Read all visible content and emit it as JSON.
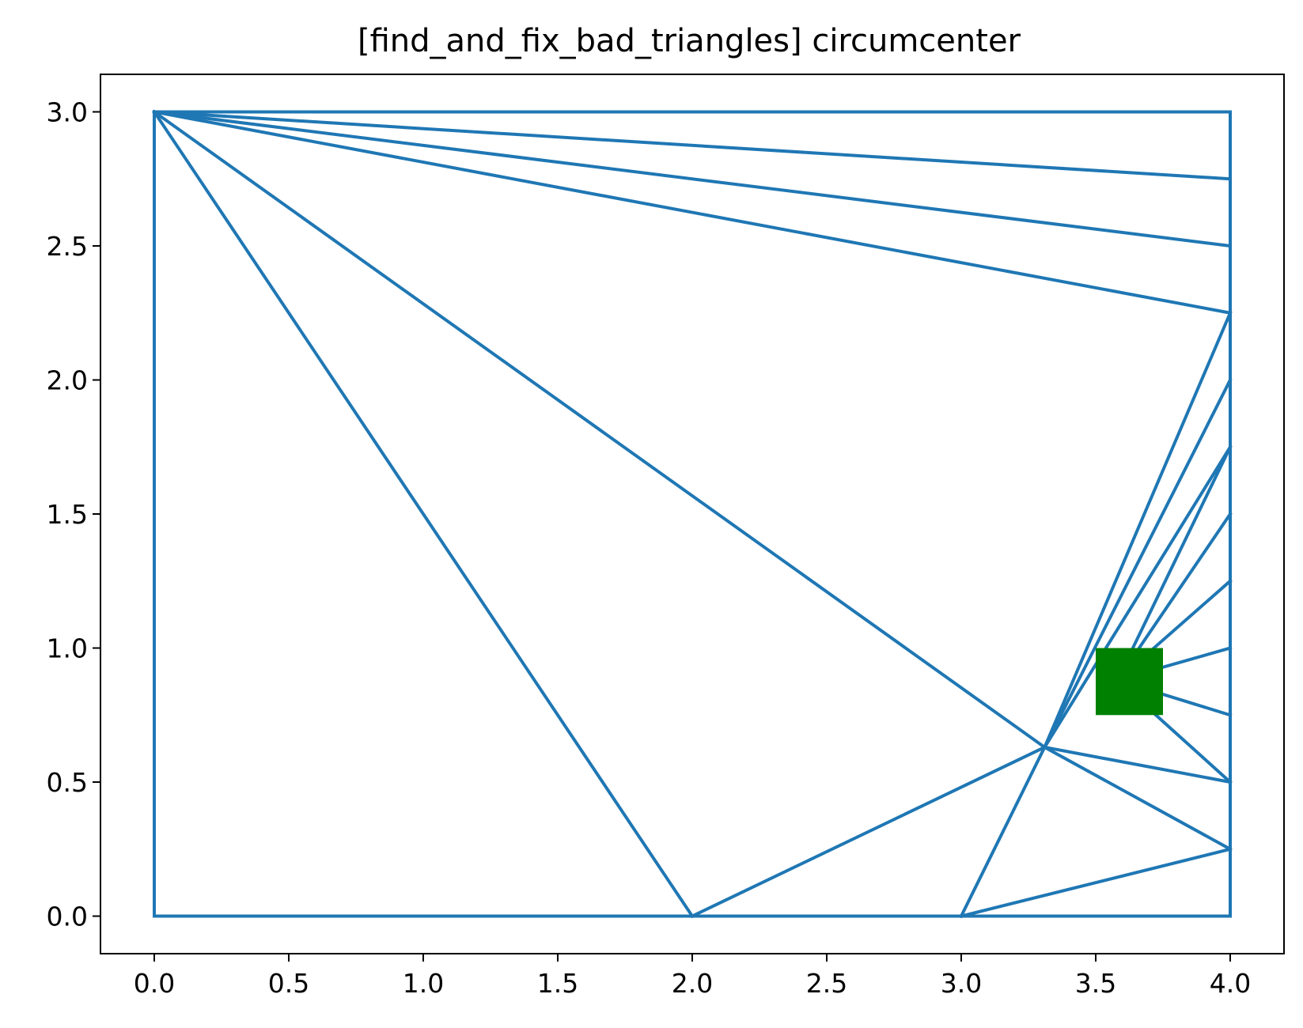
{
  "chart_data": {
    "type": "line",
    "title": "[find_and_fix_bad_triangles] circumcenter",
    "xlabel": "",
    "ylabel": "",
    "xlim": [
      -0.2,
      4.2
    ],
    "ylim": [
      -0.14,
      3.14
    ],
    "x_ticks": [
      0.0,
      0.5,
      1.0,
      1.5,
      2.0,
      2.5,
      3.0,
      3.5,
      4.0
    ],
    "y_ticks": [
      0.0,
      0.5,
      1.0,
      1.5,
      2.0,
      2.5,
      3.0
    ],
    "x_tick_labels": [
      "0.0",
      "0.5",
      "1.0",
      "1.5",
      "2.0",
      "2.5",
      "3.0",
      "3.5",
      "4.0"
    ],
    "y_tick_labels": [
      "0.0",
      "0.5",
      "1.0",
      "1.5",
      "2.0",
      "2.5",
      "3.0"
    ],
    "grid": false,
    "line_color": "#1f77b4",
    "marker_color": "#008000",
    "edges": [
      [
        [
          0,
          0
        ],
        [
          4,
          0
        ]
      ],
      [
        [
          4,
          0
        ],
        [
          4,
          3
        ]
      ],
      [
        [
          4,
          3
        ],
        [
          0,
          3
        ]
      ],
      [
        [
          0,
          3
        ],
        [
          0,
          0
        ]
      ],
      [
        [
          0,
          3
        ],
        [
          4,
          2.75
        ]
      ],
      [
        [
          0,
          3
        ],
        [
          4,
          2.5
        ]
      ],
      [
        [
          0,
          3
        ],
        [
          4,
          2.25
        ]
      ],
      [
        [
          0,
          3
        ],
        [
          3.31,
          0.63
        ]
      ],
      [
        [
          0,
          3
        ],
        [
          2,
          0
        ]
      ],
      [
        [
          2,
          0
        ],
        [
          3.31,
          0.63
        ]
      ],
      [
        [
          3,
          0
        ],
        [
          3.31,
          0.63
        ]
      ],
      [
        [
          3,
          0
        ],
        [
          4,
          0.25
        ]
      ],
      [
        [
          3.31,
          0.63
        ],
        [
          4,
          2.25
        ]
      ],
      [
        [
          3.31,
          0.63
        ],
        [
          4,
          2.0
        ]
      ],
      [
        [
          3.31,
          0.63
        ],
        [
          4,
          1.75
        ]
      ],
      [
        [
          3.31,
          0.63
        ],
        [
          4,
          0.5
        ]
      ],
      [
        [
          3.31,
          0.63
        ],
        [
          4,
          0.25
        ]
      ],
      [
        [
          3.58,
          0.88
        ],
        [
          4,
          1.75
        ]
      ],
      [
        [
          3.58,
          0.88
        ],
        [
          4,
          1.5
        ]
      ],
      [
        [
          3.58,
          0.88
        ],
        [
          4,
          1.25
        ]
      ],
      [
        [
          3.58,
          0.88
        ],
        [
          4,
          1.0
        ]
      ],
      [
        [
          3.58,
          0.88
        ],
        [
          4,
          0.75
        ]
      ],
      [
        [
          3.58,
          0.88
        ],
        [
          4,
          0.5
        ]
      ]
    ],
    "markers": [
      {
        "shape": "square",
        "x": 3.625,
        "y": 0.875,
        "half_width": 0.125,
        "half_height": 0.125
      }
    ]
  }
}
